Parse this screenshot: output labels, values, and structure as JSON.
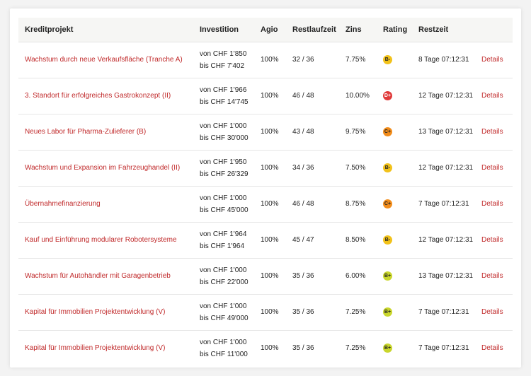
{
  "columns": {
    "project": "Kreditprojekt",
    "investment": "Investition",
    "agio": "Agio",
    "term": "Restlaufzeit",
    "rate": "Zins",
    "rating": "Rating",
    "time_left": "Restzeit"
  },
  "rating_colors": {
    "B-": "#f2c21a",
    "D+": "#e03a3a",
    "C+": "#f28c1a",
    "B+": "#c9d62c"
  },
  "rows": [
    {
      "project": "Wachstum durch neue Verkaufsfläche (Tranche A)",
      "inv_from": "von CHF 1'850",
      "inv_to": "bis CHF 7'402",
      "agio": "100%",
      "term": "32 / 36",
      "rate": "7.75%",
      "rating": "B-",
      "time_left": "8 Tage 07:12:31",
      "details": "Details"
    },
    {
      "project": "3. Standort für erfolgreiches Gastrokonzept (II)",
      "inv_from": "von CHF 1'966",
      "inv_to": "bis CHF 14'745",
      "agio": "100%",
      "term": "46 / 48",
      "rate": "10.00%",
      "rating": "D+",
      "time_left": "12 Tage 07:12:31",
      "details": "Details"
    },
    {
      "project": "Neues Labor für Pharma-Zulieferer (B)",
      "inv_from": "von CHF 1'000",
      "inv_to": "bis CHF 30'000",
      "agio": "100%",
      "term": "43 / 48",
      "rate": "9.75%",
      "rating": "C+",
      "time_left": "13 Tage 07:12:31",
      "details": "Details"
    },
    {
      "project": "Wachstum und Expansion im Fahrzeughandel (II)",
      "inv_from": "von CHF 1'950",
      "inv_to": "bis CHF 26'329",
      "agio": "100%",
      "term": "34 / 36",
      "rate": "7.50%",
      "rating": "B-",
      "time_left": "12 Tage 07:12:31",
      "details": "Details"
    },
    {
      "project": "Übernahmefinanzierung",
      "inv_from": "von CHF 1'000",
      "inv_to": "bis CHF 45'000",
      "agio": "100%",
      "term": "46 / 48",
      "rate": "8.75%",
      "rating": "C+",
      "time_left": "7 Tage 07:12:31",
      "details": "Details"
    },
    {
      "project": "Kauf und Einführung modularer Robotersysteme",
      "inv_from": "von CHF 1'964",
      "inv_to": "bis CHF 1'964",
      "agio": "100%",
      "term": "45 / 47",
      "rate": "8.50%",
      "rating": "B-",
      "time_left": "12 Tage 07:12:31",
      "details": "Details"
    },
    {
      "project": "Wachstum für Autohändler mit Garagenbetrieb",
      "inv_from": "von CHF 1'000",
      "inv_to": "bis CHF 22'000",
      "agio": "100%",
      "term": "35 / 36",
      "rate": "6.00%",
      "rating": "B+",
      "time_left": "13 Tage 07:12:31",
      "details": "Details"
    },
    {
      "project": "Kapital für Immobilien Projektentwicklung (V)",
      "inv_from": "von CHF 1'000",
      "inv_to": "bis CHF 49'000",
      "agio": "100%",
      "term": "35 / 36",
      "rate": "7.25%",
      "rating": "B+",
      "time_left": "7 Tage 07:12:31",
      "details": "Details"
    },
    {
      "project": "Kapital für Immobilien Projektentwicklung (V)",
      "inv_from": "von CHF 1'000",
      "inv_to": "bis CHF 11'000",
      "agio": "100%",
      "term": "35 / 36",
      "rate": "7.25%",
      "rating": "B+",
      "time_left": "7 Tage 07:12:31",
      "details": "Details"
    }
  ]
}
